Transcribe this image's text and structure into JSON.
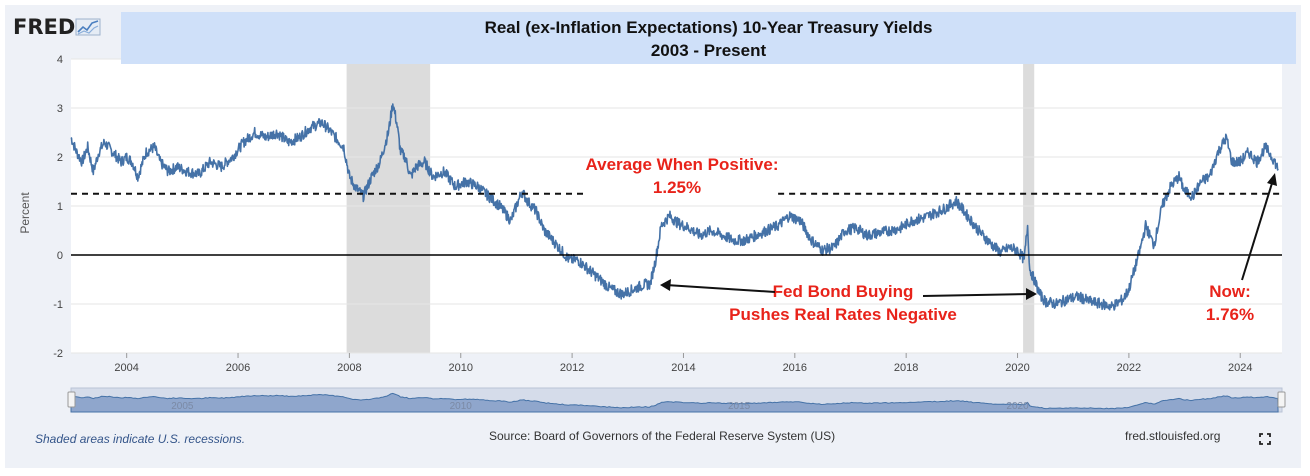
{
  "logo": {
    "text": "FRED"
  },
  "title": {
    "line1": "Real (ex-Inflation Expectations) 10-Year Treasury Yields",
    "line2": "2003 - Present"
  },
  "chart_data": {
    "type": "line",
    "ylabel": "Percent",
    "xlabel": "",
    "ylim": [
      -2,
      4
    ],
    "xlim": [
      2003.0,
      2024.75
    ],
    "yticks": [
      -2,
      -1,
      0,
      1,
      2,
      3,
      4
    ],
    "xticks": [
      2004,
      2006,
      2008,
      2010,
      2012,
      2014,
      2016,
      2018,
      2020,
      2022,
      2024
    ],
    "grid": "horizontal",
    "recessions": [
      [
        2007.95,
        2009.45
      ],
      [
        2020.1,
        2020.3
      ]
    ],
    "series": [
      {
        "color": "#4572a7",
        "x": [
          2003.0,
          2003.1,
          2003.2,
          2003.3,
          2003.4,
          2003.5,
          2003.6,
          2003.75,
          2003.9,
          2004.0,
          2004.1,
          2004.2,
          2004.35,
          2004.5,
          2004.6,
          2004.75,
          2004.9,
          2005.1,
          2005.3,
          2005.5,
          2005.7,
          2005.9,
          2006.1,
          2006.3,
          2006.5,
          2006.7,
          2006.9,
          2007.1,
          2007.3,
          2007.5,
          2007.6,
          2007.75,
          2007.9,
          2008.0,
          2008.1,
          2008.25,
          2008.4,
          2008.55,
          2008.7,
          2008.78,
          2008.85,
          2008.92,
          2009.0,
          2009.1,
          2009.2,
          2009.35,
          2009.5,
          2009.7,
          2009.9,
          2010.1,
          2010.3,
          2010.5,
          2010.7,
          2010.9,
          2011.0,
          2011.1,
          2011.2,
          2011.35,
          2011.5,
          2011.65,
          2011.8,
          2011.95,
          2012.1,
          2012.3,
          2012.5,
          2012.7,
          2012.9,
          2013.1,
          2013.3,
          2013.4,
          2013.5,
          2013.6,
          2013.75,
          2013.9,
          2014.1,
          2014.3,
          2014.5,
          2014.7,
          2014.9,
          2015.1,
          2015.3,
          2015.5,
          2015.7,
          2015.9,
          2016.1,
          2016.3,
          2016.5,
          2016.7,
          2016.9,
          2017.1,
          2017.3,
          2017.5,
          2017.7,
          2017.9,
          2018.1,
          2018.3,
          2018.5,
          2018.7,
          2018.9,
          2019.1,
          2019.3,
          2019.5,
          2019.7,
          2019.85,
          2020.0,
          2020.12,
          2020.18,
          2020.22,
          2020.3,
          2020.4,
          2020.5,
          2020.7,
          2020.9,
          2021.1,
          2021.3,
          2021.5,
          2021.7,
          2021.9,
          2022.0,
          2022.1,
          2022.2,
          2022.3,
          2022.45,
          2022.6,
          2022.75,
          2022.9,
          2023.0,
          2023.15,
          2023.3,
          2023.45,
          2023.6,
          2023.75,
          2023.85,
          2024.0,
          2024.15,
          2024.3,
          2024.45,
          2024.6,
          2024.68
        ],
        "values": [
          2.4,
          2.1,
          1.9,
          2.2,
          1.7,
          2.1,
          2.3,
          2.1,
          1.9,
          2.0,
          1.9,
          1.6,
          2.1,
          2.2,
          1.9,
          1.7,
          1.8,
          1.7,
          1.65,
          1.9,
          1.8,
          2.0,
          2.3,
          2.5,
          2.4,
          2.5,
          2.3,
          2.4,
          2.6,
          2.7,
          2.6,
          2.4,
          2.2,
          1.6,
          1.4,
          1.2,
          1.6,
          1.9,
          2.5,
          3.1,
          2.7,
          2.1,
          2.0,
          1.6,
          1.8,
          1.9,
          1.6,
          1.7,
          1.4,
          1.5,
          1.4,
          1.2,
          1.0,
          0.7,
          1.0,
          1.3,
          1.1,
          0.9,
          0.5,
          0.3,
          0.1,
          -0.1,
          -0.1,
          -0.3,
          -0.5,
          -0.7,
          -0.8,
          -0.7,
          -0.6,
          -0.6,
          -0.1,
          0.6,
          0.8,
          0.65,
          0.55,
          0.4,
          0.5,
          0.4,
          0.3,
          0.3,
          0.4,
          0.5,
          0.6,
          0.8,
          0.7,
          0.3,
          0.1,
          0.15,
          0.5,
          0.55,
          0.4,
          0.45,
          0.5,
          0.55,
          0.7,
          0.75,
          0.85,
          0.95,
          1.1,
          0.8,
          0.5,
          0.25,
          0.05,
          0.15,
          0.1,
          -0.1,
          0.6,
          -0.3,
          -0.5,
          -0.8,
          -0.95,
          -1.0,
          -0.9,
          -0.85,
          -0.95,
          -1.0,
          -1.05,
          -0.9,
          -0.7,
          -0.3,
          0.1,
          0.6,
          0.2,
          1.0,
          1.4,
          1.6,
          1.3,
          1.2,
          1.5,
          1.6,
          2.1,
          2.4,
          1.9,
          1.9,
          2.1,
          1.9,
          2.2,
          1.95,
          1.76
        ]
      }
    ],
    "annotations": [
      {
        "text": "Average When Positive:",
        "value_text": "1.25%",
        "level": 1.25
      },
      {
        "text": "Fed Bond Buying",
        "text2": "Pushes Real Rates Negative"
      },
      {
        "text": "Now:",
        "value_text": "1.76%"
      }
    ],
    "navigator": {
      "labels": [
        "2005",
        "2010",
        "2015",
        "2020"
      ]
    }
  },
  "colors": {
    "line": "#4572a7",
    "annotation": "#e8231a",
    "recession": "#dcdcdc",
    "title_bg": "#cfe0f9"
  },
  "footer": {
    "recession_note": "Shaded areas indicate U.S. recessions.",
    "source": "Source: Board of Governors of the Federal Reserve System (US)",
    "site": "fred.stlouisfed.org"
  },
  "icons": {
    "logo_icon": "chart-line-icon",
    "expand": "fullscreen-icon"
  }
}
